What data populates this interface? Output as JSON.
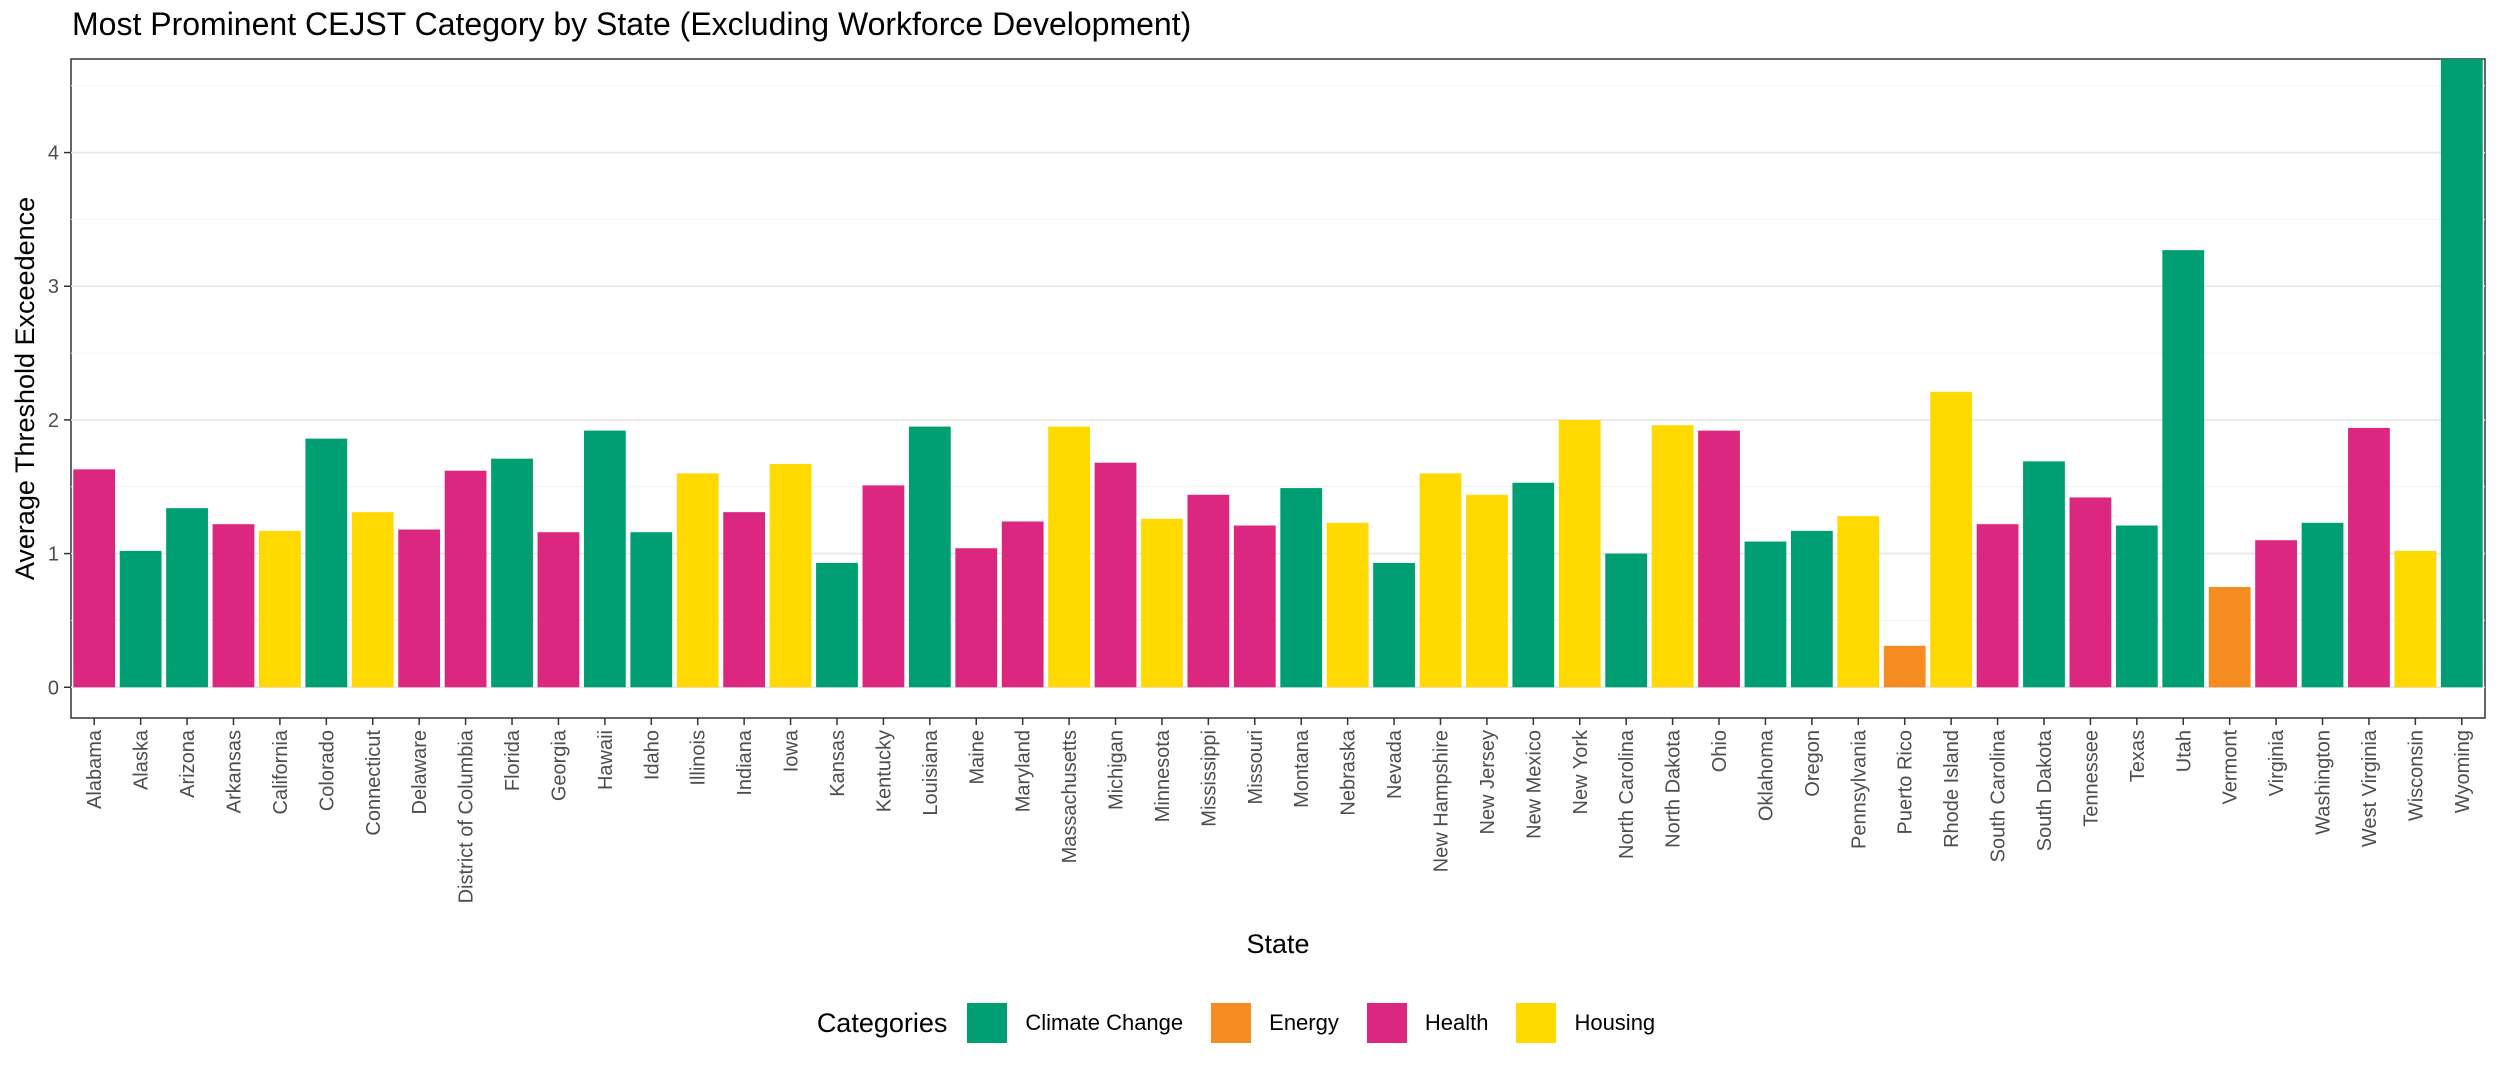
{
  "chart_data": {
    "type": "bar",
    "title": "Most Prominent CEJST Category by State (Excluding Workforce Development)",
    "xlabel": "State",
    "ylabel": "Average Threshold Exceedence",
    "ylim": [
      -0.23,
      4.7
    ],
    "yticks": [
      0,
      1,
      2,
      3,
      4
    ],
    "grid": true,
    "legend_position": "bottom",
    "legend_title": "Categories",
    "legend": [
      {
        "name": "Climate Change",
        "color": "#009E73"
      },
      {
        "name": "Energy",
        "color": "#F68B1F"
      },
      {
        "name": "Health",
        "color": "#DB2780"
      },
      {
        "name": "Housing",
        "color": "#FFD900"
      }
    ],
    "categories": [
      "Alabama",
      "Alaska",
      "Arizona",
      "Arkansas",
      "California",
      "Colorado",
      "Connecticut",
      "Delaware",
      "District of Columbia",
      "Florida",
      "Georgia",
      "Hawaii",
      "Idaho",
      "Illinois",
      "Indiana",
      "Iowa",
      "Kansas",
      "Kentucky",
      "Louisiana",
      "Maine",
      "Maryland",
      "Massachusetts",
      "Michigan",
      "Minnesota",
      "Mississippi",
      "Missouri",
      "Montana",
      "Nebraska",
      "Nevada",
      "New Hampshire",
      "New Jersey",
      "New Mexico",
      "New York",
      "North Carolina",
      "North Dakota",
      "Ohio",
      "Oklahoma",
      "Oregon",
      "Pennsylvania",
      "Puerto Rico",
      "Rhode Island",
      "South Carolina",
      "South Dakota",
      "Tennessee",
      "Texas",
      "Utah",
      "Vermont",
      "Virginia",
      "Washington",
      "West Virginia",
      "Wisconsin",
      "Wyoming"
    ],
    "values": [
      1.63,
      1.02,
      1.34,
      1.22,
      1.17,
      1.86,
      1.31,
      1.18,
      1.62,
      1.71,
      1.16,
      1.92,
      1.16,
      1.6,
      1.31,
      1.67,
      0.93,
      1.51,
      1.95,
      1.04,
      1.24,
      1.95,
      1.68,
      1.26,
      1.44,
      1.21,
      1.49,
      1.23,
      0.93,
      1.6,
      1.44,
      1.53,
      2.0,
      1.0,
      1.96,
      1.92,
      1.09,
      1.17,
      1.28,
      0.31,
      2.21,
      1.22,
      1.69,
      1.42,
      1.21,
      3.27,
      0.75,
      1.1,
      1.23,
      1.94,
      1.02,
      4.7
    ],
    "bar_categories": [
      "Health",
      "Climate Change",
      "Climate Change",
      "Health",
      "Housing",
      "Climate Change",
      "Housing",
      "Health",
      "Health",
      "Climate Change",
      "Health",
      "Climate Change",
      "Climate Change",
      "Housing",
      "Health",
      "Housing",
      "Climate Change",
      "Health",
      "Climate Change",
      "Health",
      "Health",
      "Housing",
      "Health",
      "Housing",
      "Health",
      "Health",
      "Climate Change",
      "Housing",
      "Climate Change",
      "Housing",
      "Housing",
      "Climate Change",
      "Housing",
      "Climate Change",
      "Housing",
      "Health",
      "Climate Change",
      "Climate Change",
      "Housing",
      "Energy",
      "Housing",
      "Health",
      "Climate Change",
      "Health",
      "Climate Change",
      "Climate Change",
      "Energy",
      "Health",
      "Climate Change",
      "Health",
      "Housing",
      "Climate Change"
    ]
  }
}
